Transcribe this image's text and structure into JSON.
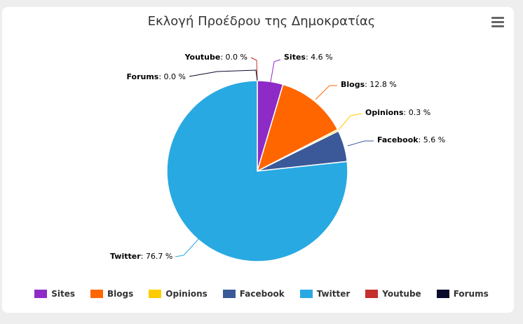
{
  "chart_data": {
    "type": "pie",
    "title": "Εκλογή Προέδρου της Δημοκρατίας",
    "unit": "%",
    "series": [
      {
        "name": "Sites",
        "value": 4.6,
        "color": "#8e2bc7"
      },
      {
        "name": "Blogs",
        "value": 12.8,
        "color": "#ff6600"
      },
      {
        "name": "Opinions",
        "value": 0.3,
        "color": "#ffcc00"
      },
      {
        "name": "Facebook",
        "value": 5.6,
        "color": "#3b5998"
      },
      {
        "name": "Twitter",
        "value": 76.7,
        "color": "#29a9e1"
      },
      {
        "name": "Youtube",
        "value": 0.0,
        "color": "#c4302b"
      },
      {
        "name": "Forums",
        "value": 0.0,
        "color": "#0b0b2b"
      }
    ],
    "legend_position": "bottom"
  },
  "toolbar": {
    "menu_icon": "hamburger-menu-icon"
  }
}
